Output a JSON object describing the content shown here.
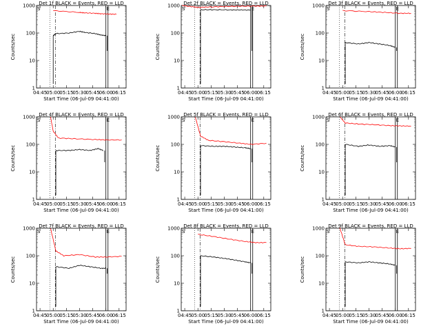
{
  "figure": {
    "xlabel": "Start Time (06-Jul-09 04:41:00)",
    "ylabel": "Counts/sec",
    "xticks": [
      "04:45",
      "05:00",
      "05:15",
      "05:30",
      "05:45",
      "06:00",
      "06:15"
    ],
    "yticks": [
      "1",
      "10",
      "100",
      "1000"
    ],
    "marker_S": "S",
    "marker_E": "E",
    "colors": {
      "events": "#000000",
      "lld": "#ff0000"
    }
  },
  "chart_data": [
    {
      "type": "line",
      "title": "Det 1f BLACK = Events, RED = LLD",
      "xlabel": "Start Time (06-Jul-09 04:41:00)",
      "ylabel": "Counts/sec",
      "yscale": "log",
      "xlim": [
        "04:41",
        "06:23"
      ],
      "ylim": [
        1,
        1000
      ],
      "series": [
        {
          "values": [
            [
              5.0,
              650
            ],
            [
              5.5,
              560
            ],
            [
              5.6,
              540
            ],
            [
              5.8,
              520
            ],
            [
              5.9,
              500
            ],
            [
              6.05,
              490
            ],
            [
              6.2,
              480
            ]
          ]
        },
        {
          "values": [
            [
              5.0,
              80
            ],
            [
              5.05,
              95
            ],
            [
              5.3,
              100
            ],
            [
              5.5,
              115
            ],
            [
              5.6,
              105
            ],
            [
              5.8,
              95
            ],
            [
              5.9,
              85
            ],
            [
              6.0,
              80
            ]
          ]
        }
      ]
    },
    {
      "type": "line",
      "title": "Det 2f BLACK = Events, RED = LLD",
      "xlabel": "Start Time (06-Jul-09 04:41:00)",
      "ylabel": "Counts/sec",
      "yscale": "log",
      "xlim": [
        "04:41",
        "06:23"
      ],
      "ylim": [
        1,
        1000
      ],
      "series": [
        {
          "values": [
            [
              4.7,
              1000
            ],
            [
              4.9,
              900
            ],
            [
              5.0,
              850
            ],
            [
              5.2,
              880
            ],
            [
              5.5,
              920
            ],
            [
              5.8,
              940
            ],
            [
              6.1,
              950
            ],
            [
              6.3,
              960
            ]
          ]
        },
        {
          "values": [
            [
              5.05,
              700
            ],
            [
              5.3,
              700
            ],
            [
              5.6,
              690
            ],
            [
              5.8,
              690
            ],
            [
              6.0,
              680
            ]
          ]
        }
      ]
    },
    {
      "type": "line",
      "title": "Det 3f BLACK = Events, RED = LLD",
      "xlabel": "Start Time (06-Jul-09 04:41:00)",
      "ylabel": "Counts/sec",
      "yscale": "log",
      "xlim": [
        "04:41",
        "06:23"
      ],
      "ylim": [
        1,
        1000
      ],
      "series": [
        {
          "values": [
            [
              5.0,
              650
            ],
            [
              5.5,
              600
            ],
            [
              5.8,
              560
            ],
            [
              6.1,
              520
            ],
            [
              6.3,
              520
            ]
          ]
        },
        {
          "values": [
            [
              5.05,
              45
            ],
            [
              5.3,
              40
            ],
            [
              5.5,
              45
            ],
            [
              5.7,
              40
            ],
            [
              5.9,
              35
            ],
            [
              6.0,
              30
            ]
          ]
        }
      ]
    },
    {
      "type": "line",
      "title": "Det 4f BLACK = Events, RED = LLD",
      "xlabel": "Start Time (06-Jul-09 04:41:00)",
      "ylabel": "Counts/sec",
      "yscale": "log",
      "xlim": [
        "04:41",
        "06:23"
      ],
      "ylim": [
        1,
        1000
      ],
      "series": [
        {
          "values": [
            [
              4.95,
              1000
            ],
            [
              5.0,
              300
            ],
            [
              5.1,
              170
            ],
            [
              5.4,
              160
            ],
            [
              5.8,
              150
            ],
            [
              6.0,
              145
            ],
            [
              6.3,
              145
            ]
          ]
        },
        {
          "values": [
            [
              5.05,
              60
            ],
            [
              5.3,
              60
            ],
            [
              5.5,
              65
            ],
            [
              5.7,
              60
            ],
            [
              5.85,
              70
            ],
            [
              5.95,
              60
            ]
          ]
        }
      ]
    },
    {
      "type": "line",
      "title": "Det 5f BLACK = Events, RED = LLD",
      "xlabel": "Start Time (06-Jul-09 04:41:00)",
      "ylabel": "Counts/sec",
      "yscale": "log",
      "xlim": [
        "04:41",
        "06:23"
      ],
      "ylim": [
        1,
        1000
      ],
      "series": [
        {
          "values": [
            [
              4.95,
              1000
            ],
            [
              5.05,
              200
            ],
            [
              5.2,
              140
            ],
            [
              5.5,
              125
            ],
            [
              5.8,
              110
            ],
            [
              6.0,
              100
            ],
            [
              6.3,
              110
            ]
          ]
        },
        {
          "values": [
            [
              5.05,
              90
            ],
            [
              5.3,
              85
            ],
            [
              5.5,
              85
            ],
            [
              5.7,
              80
            ],
            [
              5.9,
              75
            ],
            [
              6.0,
              70
            ]
          ]
        }
      ]
    },
    {
      "type": "line",
      "title": "Det 6f BLACK = Events, RED = LLD",
      "xlabel": "Start Time (06-Jul-09 04:41:00)",
      "ylabel": "Counts/sec",
      "yscale": "log",
      "xlim": [
        "04:41",
        "06:23"
      ],
      "ylim": [
        1,
        1000
      ],
      "series": [
        {
          "values": [
            [
              4.95,
              1000
            ],
            [
              5.05,
              600
            ],
            [
              5.3,
              550
            ],
            [
              5.6,
              520
            ],
            [
              5.9,
              480
            ],
            [
              6.1,
              470
            ],
            [
              6.3,
              460
            ]
          ]
        },
        {
          "values": [
            [
              5.05,
              100
            ],
            [
              5.3,
              85
            ],
            [
              5.5,
              95
            ],
            [
              5.7,
              85
            ],
            [
              5.9,
              90
            ],
            [
              6.0,
              80
            ]
          ]
        }
      ]
    },
    {
      "type": "line",
      "title": "Det 7f BLACK = Events, RED = LLD",
      "xlabel": "Start Time (06-Jul-09 04:41:00)",
      "ylabel": "Counts/sec",
      "yscale": "log",
      "xlim": [
        "04:41",
        "06:23"
      ],
      "ylim": [
        1,
        1000
      ],
      "series": [
        {
          "values": [
            [
              4.95,
              1000
            ],
            [
              5.05,
              150
            ],
            [
              5.2,
              100
            ],
            [
              5.5,
              110
            ],
            [
              5.8,
              90
            ],
            [
              6.0,
              90
            ],
            [
              6.3,
              95
            ]
          ]
        },
        {
          "values": [
            [
              5.05,
              40
            ],
            [
              5.3,
              35
            ],
            [
              5.5,
              45
            ],
            [
              5.7,
              40
            ],
            [
              5.9,
              35
            ],
            [
              6.0,
              35
            ]
          ]
        }
      ]
    },
    {
      "type": "line",
      "title": "Det 8f BLACK = Events, RED = LLD",
      "xlabel": "Start Time (06-Jul-09 04:41:00)",
      "ylabel": "Counts/sec",
      "yscale": "log",
      "xlim": [
        "04:41",
        "06:23"
      ],
      "ylim": [
        1,
        1000
      ],
      "series": [
        {
          "values": [
            [
              5.0,
              600
            ],
            [
              5.3,
              500
            ],
            [
              5.6,
              400
            ],
            [
              5.9,
              330
            ],
            [
              6.1,
              300
            ],
            [
              6.3,
              300
            ]
          ]
        },
        {
          "values": [
            [
              5.05,
              100
            ],
            [
              5.3,
              90
            ],
            [
              5.5,
              80
            ],
            [
              5.7,
              70
            ],
            [
              5.9,
              60
            ],
            [
              6.0,
              55
            ]
          ]
        }
      ]
    },
    {
      "type": "line",
      "title": "Det 9f BLACK = Events, RED = LLD",
      "xlabel": "Start Time (06-Jul-09 04:41:00)",
      "ylabel": "Counts/sec",
      "yscale": "log",
      "xlim": [
        "04:41",
        "06:23"
      ],
      "ylim": [
        1,
        1000
      ],
      "series": [
        {
          "values": [
            [
              4.95,
              1000
            ],
            [
              5.05,
              250
            ],
            [
              5.3,
              220
            ],
            [
              5.6,
              210
            ],
            [
              5.9,
              190
            ],
            [
              6.1,
              180
            ],
            [
              6.3,
              185
            ]
          ]
        },
        {
          "values": [
            [
              5.05,
              60
            ],
            [
              5.3,
              55
            ],
            [
              5.5,
              60
            ],
            [
              5.7,
              55
            ],
            [
              5.9,
              50
            ],
            [
              6.0,
              45
            ]
          ]
        }
      ]
    }
  ]
}
